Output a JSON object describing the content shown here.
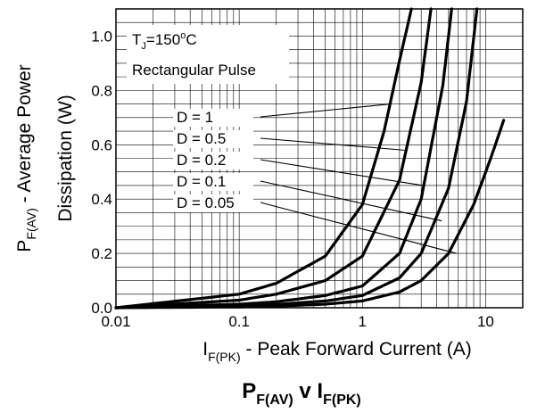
{
  "chart_data": {
    "type": "line",
    "title": "P",
    "title_sub1": "F(AV)",
    "title_mid": " v I",
    "title_sub2": "F(PK)",
    "xlabel": "I",
    "xlabel_sub": "F(PK)",
    "xlabel_rest": " - Peak Forward Current (A)",
    "ylabel_line1_pre": "P",
    "ylabel_line1_sub": "F(AV)",
    "ylabel_line1_post": " - Average Power",
    "ylabel_line2": "Dissipation (W)",
    "x_scale": "log",
    "xlim": [
      0.01,
      20
    ],
    "ylim": [
      0,
      1.1
    ],
    "grid": true,
    "x_ticks": [
      {
        "value": 0.01,
        "label": "0.01"
      },
      {
        "value": 0.1,
        "label": "0.1"
      },
      {
        "value": 1,
        "label": "1"
      },
      {
        "value": 10,
        "label": "10"
      }
    ],
    "y_ticks": [
      {
        "value": 0,
        "label": "0.0"
      },
      {
        "value": 0.2,
        "label": "0.2"
      },
      {
        "value": 0.4,
        "label": "0.4"
      },
      {
        "value": 0.6,
        "label": "0.6"
      },
      {
        "value": 0.8,
        "label": "0.8"
      },
      {
        "value": 1.0,
        "label": "1.0"
      }
    ],
    "annotation_tj_pre": "T",
    "annotation_tj_sub": "J",
    "annotation_tj_post": "=150",
    "annotation_tj_deg": "o",
    "annotation_tj_unit": "C",
    "annotation_pulse": "Rectangular Pulse",
    "series": [
      {
        "name": "D = 1",
        "x": [
          0.01,
          0.1,
          0.2,
          0.5,
          1,
          1.5,
          2,
          2.5
        ],
        "y": [
          0.0,
          0.05,
          0.09,
          0.19,
          0.38,
          0.65,
          0.91,
          1.1
        ],
        "label_target": {
          "x": 1.7,
          "y": 0.75
        }
      },
      {
        "name": "D = 0.5",
        "x": [
          0.01,
          0.1,
          0.2,
          0.5,
          1,
          2,
          3,
          3.6
        ],
        "y": [
          0.0,
          0.028,
          0.05,
          0.1,
          0.19,
          0.47,
          0.83,
          1.1
        ],
        "label_target": {
          "x": 2.2,
          "y": 0.58
        }
      },
      {
        "name": "D = 0.2",
        "x": [
          0.01,
          0.1,
          0.2,
          0.5,
          1,
          2,
          3,
          4.5,
          5.3
        ],
        "y": [
          0.0,
          0.013,
          0.022,
          0.045,
          0.08,
          0.2,
          0.4,
          0.82,
          1.1
        ],
        "label_target": {
          "x": 3.1,
          "y": 0.45
        }
      },
      {
        "name": "D = 0.1",
        "x": [
          0.01,
          0.1,
          0.2,
          0.5,
          1,
          2,
          3,
          5,
          7,
          8.5
        ],
        "y": [
          0.0,
          0.006,
          0.012,
          0.025,
          0.045,
          0.11,
          0.2,
          0.44,
          0.76,
          1.1
        ],
        "label_target": {
          "x": 4.4,
          "y": 0.32
        }
      },
      {
        "name": "D = 0.05",
        "x": [
          0.01,
          0.1,
          0.2,
          0.5,
          1,
          2,
          3,
          5,
          8,
          11,
          14
        ],
        "y": [
          0.0,
          0.003,
          0.006,
          0.013,
          0.025,
          0.058,
          0.1,
          0.2,
          0.38,
          0.55,
          0.69
        ],
        "label_target": {
          "x": 5.8,
          "y": 0.2
        }
      }
    ]
  }
}
